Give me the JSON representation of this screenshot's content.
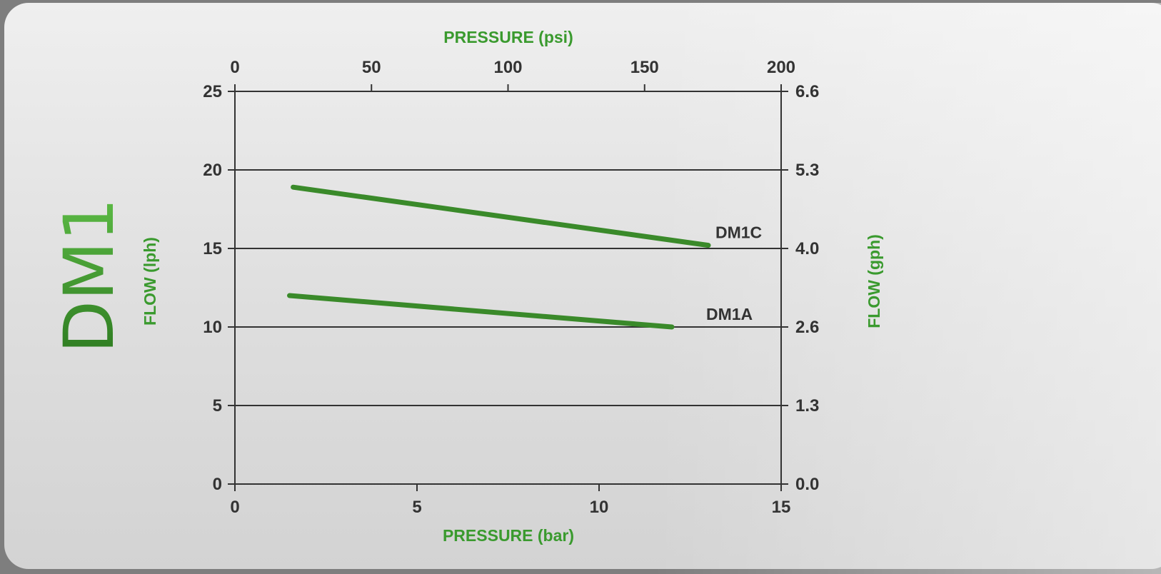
{
  "model_title": "DM1",
  "chart_data": {
    "type": "line",
    "title": "DM1",
    "xlabel": "PRESSURE (bar)",
    "x2label": "PRESSURE (psi)",
    "ylabel": "FLOW (lph)",
    "y2label": "FLOW (gph)",
    "xlim": [
      0,
      15
    ],
    "x2lim": [
      0,
      200
    ],
    "ylim": [
      0,
      25
    ],
    "x_ticks": [
      "0",
      "5",
      "10",
      "15"
    ],
    "x2_ticks": [
      "0",
      "50",
      "100",
      "150",
      "200"
    ],
    "y_ticks": [
      "0",
      "5",
      "10",
      "15",
      "20",
      "25"
    ],
    "y2_ticks": [
      "0.0",
      "1.3",
      "2.6",
      "4.0",
      "5.3",
      "6.6"
    ],
    "grid": true,
    "series": [
      {
        "name": "DM1C",
        "x": [
          1.6,
          13.0
        ],
        "y": [
          18.9,
          15.2
        ]
      },
      {
        "name": "DM1A",
        "x": [
          1.5,
          12.0
        ],
        "y": [
          12.0,
          10.0
        ]
      }
    ],
    "colors": {
      "line": "#3a8a2a",
      "accent": "#3a9a2e",
      "axis": "#333333"
    }
  }
}
